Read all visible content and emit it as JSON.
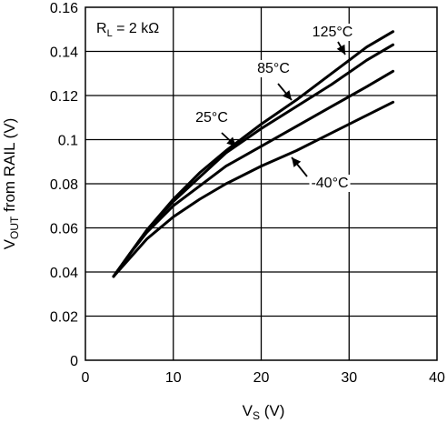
{
  "chart_data": {
    "type": "line",
    "xlabel": "V",
    "xlabel_sub": "S",
    "xlabel_unit": " (V)",
    "ylabel": "V",
    "ylabel_sub": "OUT",
    "ylabel_rest": " from RAIL (V)",
    "xlim": [
      0,
      40
    ],
    "ylim": [
      0,
      0.16
    ],
    "x_ticks": [
      0,
      10,
      20,
      30,
      40
    ],
    "x_tick_labels": [
      "0",
      "10",
      "20",
      "30",
      "40"
    ],
    "y_ticks": [
      0,
      0.02,
      0.04,
      0.06,
      0.08,
      0.1,
      0.12,
      0.14,
      0.16
    ],
    "y_tick_labels": [
      "0",
      "0.02",
      "0.04",
      "0.06",
      "0.08",
      "0.1",
      "0.12",
      "0.14",
      "0.16"
    ],
    "grid": true,
    "condition": {
      "prefix": "R",
      "sub": "L",
      "rest": " = 2 kΩ"
    },
    "line_color": "#000000",
    "series": [
      {
        "name": "125°C",
        "x": [
          3.2,
          5,
          7,
          10,
          13,
          16,
          20,
          24,
          28,
          32,
          35
        ],
        "y": [
          0.038,
          0.048,
          0.059,
          0.073,
          0.085,
          0.095,
          0.107,
          0.118,
          0.13,
          0.142,
          0.149
        ]
      },
      {
        "name": "85°C",
        "x": [
          3.2,
          5,
          7,
          10,
          13,
          16,
          20,
          24,
          28,
          32,
          35
        ],
        "y": [
          0.038,
          0.048,
          0.059,
          0.072,
          0.083,
          0.094,
          0.105,
          0.115,
          0.125,
          0.136,
          0.143
        ]
      },
      {
        "name": "25°C",
        "x": [
          3.2,
          5,
          7,
          10,
          13,
          16,
          20,
          24,
          28,
          32,
          35
        ],
        "y": [
          0.038,
          0.048,
          0.058,
          0.07,
          0.079,
          0.088,
          0.097,
          0.106,
          0.115,
          0.124,
          0.131
        ]
      },
      {
        "name": "-40°C",
        "x": [
          3.2,
          5,
          7,
          10,
          13,
          16,
          20,
          24,
          28,
          32,
          35
        ],
        "y": [
          0.038,
          0.046,
          0.055,
          0.065,
          0.073,
          0.08,
          0.088,
          0.095,
          0.103,
          0.111,
          0.117
        ]
      }
    ]
  }
}
